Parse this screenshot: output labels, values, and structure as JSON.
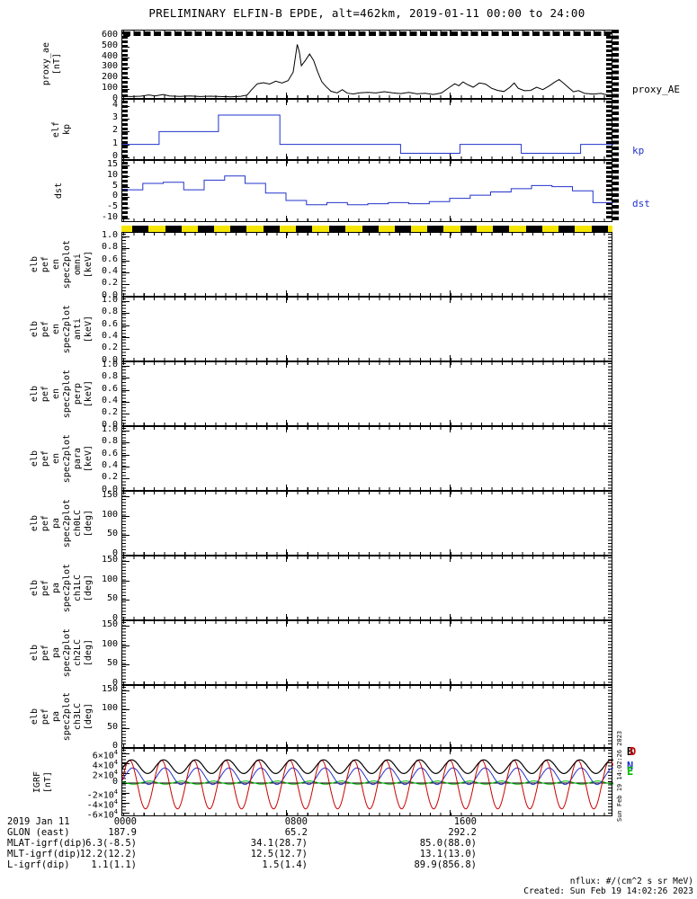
{
  "title": "PRELIMINARY ELFIN-B EPDE, alt=462km, 2019-01-11 00:00 to 24:00",
  "colors": {
    "axis": "#000000",
    "blue_trace": "#2233cc",
    "red_trace": "#cc0000",
    "green_trace": "#00bb00",
    "black_trace": "#000000",
    "science_bar_yellow": "#f5e600",
    "science_bar_black": "#000000"
  },
  "xaxis": {
    "start_label": "0000",
    "mid_label": "0800",
    "right_label": "1600",
    "range_hours": [
      0,
      24
    ]
  },
  "panels": [
    {
      "id": "proxy_ae",
      "label_words": [
        "proxy_ae",
        "[nT]"
      ],
      "ylim": [
        0,
        650
      ],
      "yticks": [
        {
          "v": 600,
          "l": "600"
        },
        {
          "v": 500,
          "l": "500"
        },
        {
          "v": 400,
          "l": "400"
        },
        {
          "v": 300,
          "l": "300"
        },
        {
          "v": 200,
          "l": "200"
        },
        {
          "v": 100,
          "l": "100"
        },
        {
          "v": 0,
          "l": "0"
        }
      ],
      "right_label": "proxy_AE",
      "right_color": "#000000"
    },
    {
      "id": "kp",
      "label_words": [
        "elf",
        "kp"
      ],
      "ylim": [
        -0.3,
        4.5
      ],
      "yticks": [
        {
          "v": 4,
          "l": "4"
        },
        {
          "v": 3,
          "l": "3"
        },
        {
          "v": 2,
          "l": "2"
        },
        {
          "v": 1,
          "l": "1"
        },
        {
          "v": 0,
          "l": "0"
        }
      ],
      "right_label": "kp",
      "right_color": "#2233cc"
    },
    {
      "id": "dst",
      "label_words": [
        "dst"
      ],
      "ylim": [
        -12,
        17
      ],
      "yticks": [
        {
          "v": 15,
          "l": "15"
        },
        {
          "v": 10,
          "l": "10"
        },
        {
          "v": 5,
          "l": "5"
        },
        {
          "v": 0,
          "l": "0"
        },
        {
          "v": -5,
          "l": "-5"
        },
        {
          "v": -10,
          "l": "-10"
        }
      ],
      "right_label": "dst",
      "right_color": "#2233cc"
    },
    {
      "id": "en_omni",
      "label_words": [
        "elb",
        "pef",
        "en",
        "spec2plot",
        "omni",
        "[keV]"
      ],
      "ylim": [
        -0.02,
        1.06
      ],
      "yticks": [
        {
          "v": 1.0,
          "l": "1.0"
        },
        {
          "v": 0.8,
          "l": "0.8"
        },
        {
          "v": 0.6,
          "l": "0.6"
        },
        {
          "v": 0.4,
          "l": "0.4"
        },
        {
          "v": 0.2,
          "l": "0.2"
        },
        {
          "v": 0.0,
          "l": "0.0"
        }
      ]
    },
    {
      "id": "en_anti",
      "label_words": [
        "elb",
        "pef",
        "en",
        "spec2plot",
        "anti",
        "[keV]"
      ],
      "ylim": [
        -0.02,
        1.06
      ],
      "yticks": [
        {
          "v": 1.0,
          "l": "1.0"
        },
        {
          "v": 0.8,
          "l": "0.8"
        },
        {
          "v": 0.6,
          "l": "0.6"
        },
        {
          "v": 0.4,
          "l": "0.4"
        },
        {
          "v": 0.2,
          "l": "0.2"
        },
        {
          "v": 0.0,
          "l": "0.0"
        }
      ]
    },
    {
      "id": "en_perp",
      "label_words": [
        "elb",
        "pef",
        "en",
        "spec2plot",
        "perp",
        "[keV]"
      ],
      "ylim": [
        -0.02,
        1.06
      ],
      "yticks": [
        {
          "v": 1.0,
          "l": "1.0"
        },
        {
          "v": 0.8,
          "l": "0.8"
        },
        {
          "v": 0.6,
          "l": "0.6"
        },
        {
          "v": 0.4,
          "l": "0.4"
        },
        {
          "v": 0.2,
          "l": "0.2"
        },
        {
          "v": 0.0,
          "l": "0.0"
        }
      ]
    },
    {
      "id": "en_para",
      "label_words": [
        "elb",
        "pef",
        "en",
        "spec2plot",
        "para",
        "[keV]"
      ],
      "ylim": [
        -0.02,
        1.06
      ],
      "yticks": [
        {
          "v": 1.0,
          "l": "1.0"
        },
        {
          "v": 0.8,
          "l": "0.8"
        },
        {
          "v": 0.6,
          "l": "0.6"
        },
        {
          "v": 0.4,
          "l": "0.4"
        },
        {
          "v": 0.2,
          "l": "0.2"
        },
        {
          "v": 0.0,
          "l": "0.0"
        }
      ]
    },
    {
      "id": "pa_ch0lc",
      "label_words": [
        "elb",
        "pef",
        "pa",
        "spec2plot",
        "ch0LC",
        "[deg]"
      ],
      "ylim": [
        -5,
        162
      ],
      "yticks": [
        {
          "v": 150,
          "l": "150"
        },
        {
          "v": 100,
          "l": "100"
        },
        {
          "v": 50,
          "l": "50"
        },
        {
          "v": 0,
          "l": "0"
        }
      ]
    },
    {
      "id": "pa_ch1lc",
      "label_words": [
        "elb",
        "pef",
        "pa",
        "spec2plot",
        "ch1LC",
        "[deg]"
      ],
      "ylim": [
        -5,
        162
      ],
      "yticks": [
        {
          "v": 150,
          "l": "150"
        },
        {
          "v": 100,
          "l": "100"
        },
        {
          "v": 50,
          "l": "50"
        },
        {
          "v": 0,
          "l": "0"
        }
      ]
    },
    {
      "id": "pa_ch2lc",
      "label_words": [
        "elb",
        "pef",
        "pa",
        "spec2plot",
        "ch2LC",
        "[deg]"
      ],
      "ylim": [
        -5,
        162
      ],
      "yticks": [
        {
          "v": 150,
          "l": "150"
        },
        {
          "v": 100,
          "l": "100"
        },
        {
          "v": 50,
          "l": "50"
        },
        {
          "v": 0,
          "l": "0"
        }
      ]
    },
    {
      "id": "pa_ch3lc",
      "label_words": [
        "elb",
        "pef",
        "pa",
        "spec2plot",
        "ch3LC",
        "[deg]"
      ],
      "ylim": [
        -5,
        162
      ],
      "yticks": [
        {
          "v": 150,
          "l": "150"
        },
        {
          "v": 100,
          "l": "100"
        },
        {
          "v": 50,
          "l": "50"
        },
        {
          "v": 0,
          "l": "0"
        }
      ]
    },
    {
      "id": "igrf",
      "label_words": [
        "IGRF",
        "[nT]"
      ],
      "ylim": [
        -70000,
        70000
      ],
      "yticks": [
        {
          "v": 60000,
          "l": "6×10^4"
        },
        {
          "v": 40000,
          "l": "4×10^4"
        },
        {
          "v": 20000,
          "l": "2×10^4"
        },
        {
          "v": 0,
          "l": "0"
        },
        {
          "v": -20000,
          "l": "-2×10^4"
        },
        {
          "v": -40000,
          "l": "-4×10^4"
        },
        {
          "v": -60000,
          "l": "-6×10^4"
        }
      ]
    }
  ],
  "igrf_legend": [
    {
      "letter": "B",
      "color": "#000000"
    },
    {
      "letter": "D",
      "color": "#cc0000"
    },
    {
      "letter": "N",
      "color": "#2233cc"
    },
    {
      "letter": "E",
      "color": "#00bb00"
    }
  ],
  "footer": {
    "rows": [
      {
        "label": "2019 Jan 11",
        "c1": "0000",
        "c2": "0800",
        "c3": "1600"
      },
      {
        "label": "GLON (east)",
        "c1": "187.9",
        "c2": "65.2",
        "c3": "292.2"
      },
      {
        "label": "MLAT-igrf(dip)",
        "c1": "6.3(-8.5)",
        "c2": "34.1(28.7)",
        "c3": "85.0(88.0)"
      },
      {
        "label": "MLT-igrf(dip)",
        "c1": "12.2(12.2)",
        "c2": "12.5(12.7)",
        "c3": "13.1(13.0)"
      },
      {
        "label": "L-igrf(dip)",
        "c1": "1.1(1.1)",
        "c2": "1.5(1.4)",
        "c3": "89.9(856.8)"
      }
    ]
  },
  "credits": {
    "nflux": "nflux: #/(cm^2 s sr MeV)",
    "created": "Created: Sun Feb 19 14:02:26 2023",
    "side": "Sun Feb 19 14:02:26 2023"
  },
  "chart_data": [
    {
      "id": "proxy_ae",
      "type": "line",
      "ylabel": "proxy_ae [nT]",
      "ylim": [
        0,
        650
      ],
      "x_unit": "hours",
      "color": "#000000",
      "points": [
        [
          0,
          35
        ],
        [
          0.4,
          30
        ],
        [
          0.9,
          34
        ],
        [
          1.3,
          46
        ],
        [
          1.6,
          36
        ],
        [
          2.0,
          50
        ],
        [
          2.3,
          36
        ],
        [
          2.8,
          32
        ],
        [
          3.3,
          36
        ],
        [
          3.8,
          30
        ],
        [
          4.3,
          34
        ],
        [
          4.8,
          30
        ],
        [
          5.3,
          28
        ],
        [
          5.8,
          33
        ],
        [
          6.1,
          45
        ],
        [
          6.3,
          90
        ],
        [
          6.6,
          150
        ],
        [
          6.9,
          160
        ],
        [
          7.2,
          148
        ],
        [
          7.5,
          175
        ],
        [
          7.8,
          158
        ],
        [
          8.1,
          180
        ],
        [
          8.35,
          260
        ],
        [
          8.55,
          520
        ],
        [
          8.65,
          450
        ],
        [
          8.75,
          320
        ],
        [
          8.95,
          370
        ],
        [
          9.15,
          430
        ],
        [
          9.35,
          370
        ],
        [
          9.55,
          260
        ],
        [
          9.75,
          170
        ],
        [
          9.95,
          125
        ],
        [
          10.2,
          80
        ],
        [
          10.5,
          65
        ],
        [
          10.75,
          95
        ],
        [
          11,
          62
        ],
        [
          11.3,
          55
        ],
        [
          11.6,
          66
        ],
        [
          12,
          70
        ],
        [
          12.4,
          64
        ],
        [
          12.8,
          76
        ],
        [
          13.2,
          66
        ],
        [
          13.6,
          58
        ],
        [
          14,
          70
        ],
        [
          14.4,
          56
        ],
        [
          14.8,
          62
        ],
        [
          15.2,
          50
        ],
        [
          15.6,
          64
        ],
        [
          16,
          118
        ],
        [
          16.25,
          150
        ],
        [
          16.45,
          132
        ],
        [
          16.65,
          168
        ],
        [
          16.85,
          145
        ],
        [
          17.15,
          118
        ],
        [
          17.45,
          158
        ],
        [
          17.75,
          148
        ],
        [
          18.05,
          108
        ],
        [
          18.35,
          88
        ],
        [
          18.65,
          78
        ],
        [
          18.95,
          118
        ],
        [
          19.15,
          158
        ],
        [
          19.35,
          108
        ],
        [
          19.65,
          85
        ],
        [
          19.95,
          88
        ],
        [
          20.25,
          118
        ],
        [
          20.55,
          95
        ],
        [
          20.85,
          128
        ],
        [
          21.15,
          168
        ],
        [
          21.35,
          190
        ],
        [
          21.55,
          158
        ],
        [
          21.85,
          108
        ],
        [
          22.05,
          75
        ],
        [
          22.3,
          86
        ],
        [
          22.6,
          60
        ],
        [
          23,
          54
        ],
        [
          23.4,
          60
        ],
        [
          23.7,
          46
        ],
        [
          24,
          42
        ]
      ]
    },
    {
      "id": "kp",
      "type": "step",
      "ylabel": "elf kp",
      "ylim": [
        -0.3,
        4.5
      ],
      "x_unit": "hours",
      "color": "#2233cc",
      "breaks": [
        0,
        1.8,
        4.7,
        7.7,
        13.6,
        16.5,
        19.5,
        22.4,
        24
      ],
      "values": [
        1,
        2,
        3.3,
        1,
        0.3,
        1,
        0.3,
        1
      ]
    },
    {
      "id": "dst",
      "type": "step",
      "ylabel": "dst",
      "ylim": [
        -12,
        17
      ],
      "x_unit": "hours",
      "step_hours": 1,
      "color": "#2233cc",
      "values": [
        3.5,
        6.5,
        7,
        3.5,
        8,
        10,
        6.5,
        2,
        -1.5,
        -3.5,
        -2.5,
        -3.5,
        -3,
        -2.5,
        -3,
        -2,
        -0.5,
        1,
        2.5,
        4,
        5.5,
        5,
        3,
        -2.5
      ]
    },
    {
      "id": "science_zone_bar",
      "type": "availability-bar",
      "bg": "#f5e600",
      "fg": "#000000",
      "segments": [
        [
          0.022,
          0.033
        ],
        [
          0.089,
          0.033
        ],
        [
          0.156,
          0.033
        ],
        [
          0.222,
          0.033
        ],
        [
          0.289,
          0.033
        ],
        [
          0.356,
          0.033
        ],
        [
          0.423,
          0.033
        ],
        [
          0.49,
          0.033
        ],
        [
          0.556,
          0.033
        ],
        [
          0.623,
          0.033
        ],
        [
          0.69,
          0.033
        ],
        [
          0.757,
          0.033
        ],
        [
          0.824,
          0.033
        ],
        [
          0.89,
          0.033
        ],
        [
          0.957,
          0.033
        ]
      ]
    },
    {
      "id": "spectrograms",
      "type": "spectrogram",
      "panels": [
        "en_omni",
        "en_anti",
        "en_perp",
        "en_para",
        "pa_ch0lc",
        "pa_ch1lc",
        "pa_ch2lc",
        "pa_ch3lc"
      ],
      "values": [],
      "note": "panels rendered blank (no spectrogram data plotted)"
    },
    {
      "id": "igrf",
      "type": "line-multi",
      "ylabel": "IGRF [nT]",
      "ylim": [
        -70000,
        70000
      ],
      "x_unit": "hours",
      "period_hours": 1.565,
      "zero_line": true,
      "series": [
        {
          "name": "E",
          "color": "#00bb00",
          "mean": 800,
          "amp": 3200,
          "phase": 2.5
        },
        {
          "name": "N",
          "color": "#2233cc",
          "mean": 14000,
          "amp": 17000,
          "phase": -0.5
        },
        {
          "name": "D",
          "color": "#cc0000",
          "mean": -3000,
          "amp": 50000,
          "phase": 0.16
        },
        {
          "name": "B",
          "color": "#000000",
          "mean": 33500,
          "amp": 14000,
          "phase": -0.25
        }
      ]
    }
  ]
}
